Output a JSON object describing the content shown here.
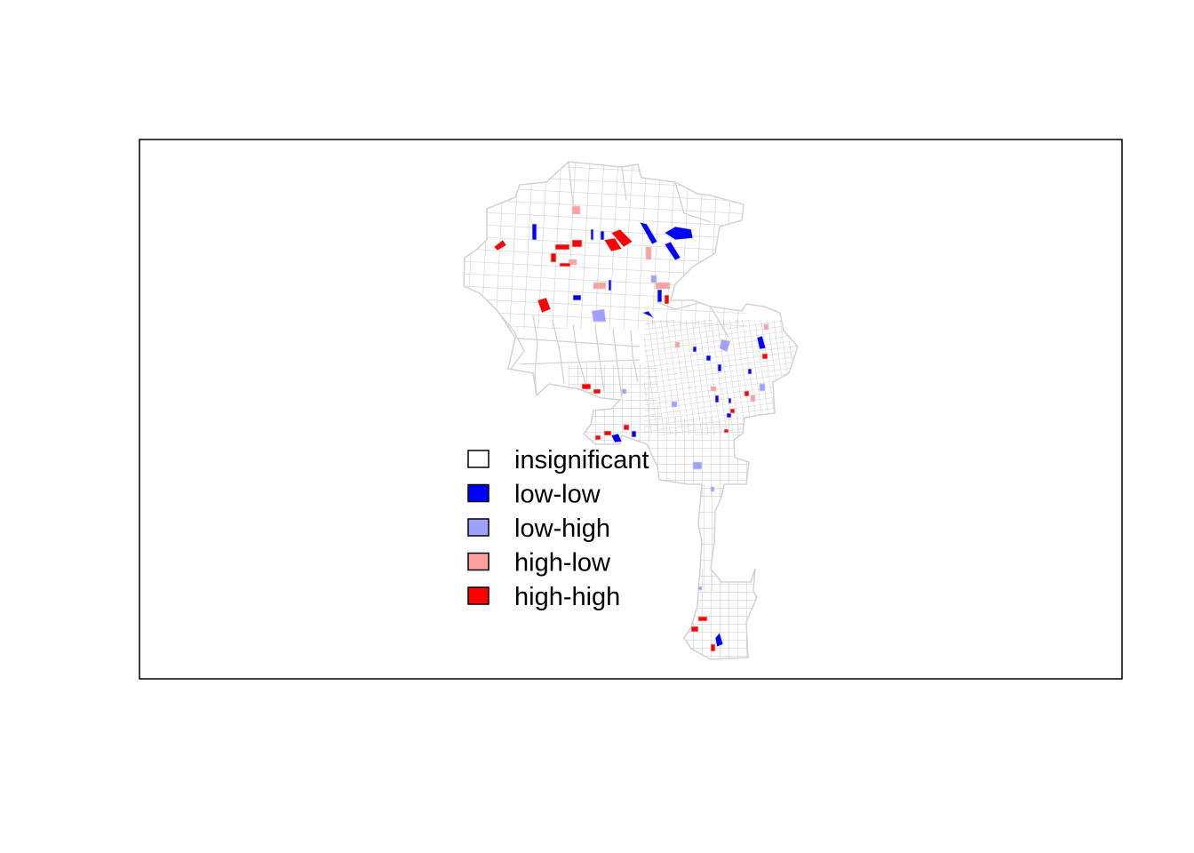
{
  "legend": {
    "items": [
      {
        "label": "insignificant",
        "color": "#FFFFFF"
      },
      {
        "label": "low-low",
        "color": "#0000FF"
      },
      {
        "label": "low-high",
        "color": "#A0A0FF"
      },
      {
        "label": "high-low",
        "color": "#FFA0A0"
      },
      {
        "label": "high-high",
        "color": "#FF0000"
      }
    ]
  },
  "colors": {
    "tract_border": "#D3D3D3",
    "frame": "#000000",
    "background": "#FFFFFF"
  }
}
